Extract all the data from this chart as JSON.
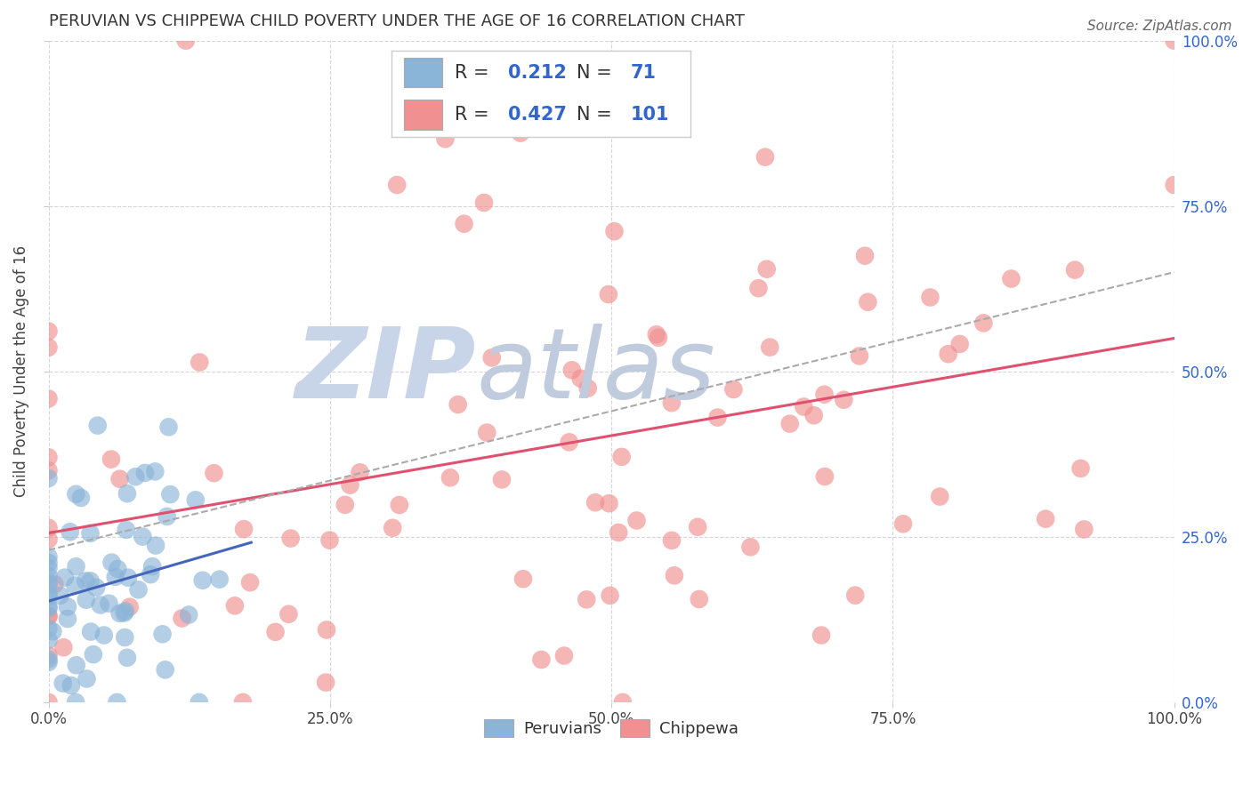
{
  "title": "PERUVIAN VS CHIPPEWA CHILD POVERTY UNDER THE AGE OF 16 CORRELATION CHART",
  "source": "Source: ZipAtlas.com",
  "ylabel": "Child Poverty Under the Age of 16",
  "peruvian_color": "#8ab4d8",
  "chippewa_color": "#f09090",
  "trendline_peruvian_color": "#4466bb",
  "trendline_chippewa_color": "#e05070",
  "trendline_combined_color": "#aaaaaa",
  "watermark_zip": "ZIP",
  "watermark_atlas": "atlas",
  "watermark_zip_color": "#c8d4e8",
  "watermark_atlas_color": "#c0ccdd",
  "background_color": "#ffffff",
  "grid_color": "#cccccc",
  "peruvian_R": 0.212,
  "peruvian_N": 71,
  "chippewa_R": 0.427,
  "chippewa_N": 101,
  "legend_text_color": "#333333",
  "legend_value_color": "#3366cc",
  "right_tick_color": "#3366cc",
  "title_fontsize": 13,
  "source_fontsize": 11,
  "tick_fontsize": 12,
  "legend_fontsize": 15
}
